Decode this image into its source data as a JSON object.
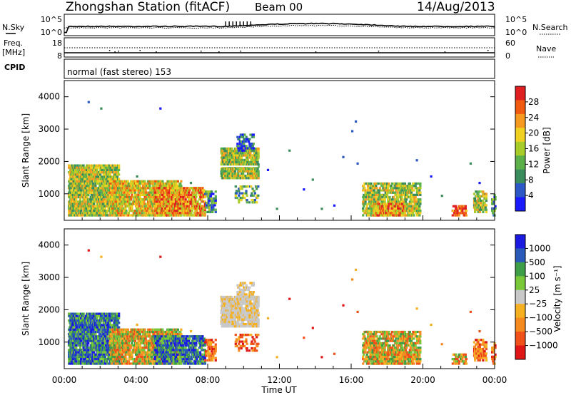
{
  "header": {
    "station": "Zhongshan Station (fitACF)",
    "beam": "Beam 00",
    "date": "14/Aug/2013"
  },
  "noise_panel": {
    "left_label": "N.Sky",
    "left_ticks": [
      "10^5",
      "10^0"
    ],
    "right_label": "N.Search",
    "right_ticks": [
      "10^5",
      "10^0"
    ]
  },
  "freq_panel": {
    "left_label": "Freq.",
    "left_unit": "[MHz]",
    "left_ticks": [
      "18",
      "8"
    ],
    "right_label": "Nave",
    "right_ticks": [
      "60",
      "0"
    ]
  },
  "cpid_panel": {
    "label": "CPID",
    "text": "normal (fast stereo) 153"
  },
  "colors": {
    "power": [
      "#1a1aff",
      "#2b58c4",
      "#3a8c5c",
      "#5cb04a",
      "#a8cc2a",
      "#f0d020",
      "#f59a20",
      "#f05a10",
      "#e02020"
    ],
    "velocity": [
      "#e01515",
      "#f0501a",
      "#f58a20",
      "#f5b022",
      "#c8c8c8",
      "#78c83a",
      "#3e9e48",
      "#2a5ab8",
      "#1a1ae0"
    ]
  },
  "chart_data": [
    {
      "type": "heatmap",
      "ylabel": "Slant Range [km]",
      "yticks": [
        1000,
        2000,
        3000,
        4000
      ],
      "ylim": [
        180,
        4500
      ],
      "xlim": [
        0,
        24
      ],
      "xticks": [
        "00:00",
        "04:00",
        "08:00",
        "12:00",
        "16:00",
        "20:00",
        "00:00"
      ],
      "colorbar": {
        "label": "Power [dB]",
        "ticks": [
          "28",
          "24",
          "20",
          "16",
          "12",
          "8",
          "4"
        ],
        "range": [
          0,
          32
        ]
      }
    },
    {
      "type": "heatmap",
      "ylabel": "Slant Range [km]",
      "yticks": [
        1000,
        2000,
        3000,
        4000
      ],
      "ylim": [
        180,
        4500
      ],
      "xlim": [
        0,
        24
      ],
      "xticks": [
        "00:00",
        "04:00",
        "08:00",
        "12:00",
        "16:00",
        "20:00",
        "00:00"
      ],
      "xlabel": "Time UT",
      "colorbar": {
        "label": "Velocity [m s⁻¹]",
        "ticks": [
          "1000",
          "500",
          "100",
          "25",
          "−25",
          "−100",
          "−500",
          "−1000"
        ]
      }
    }
  ]
}
